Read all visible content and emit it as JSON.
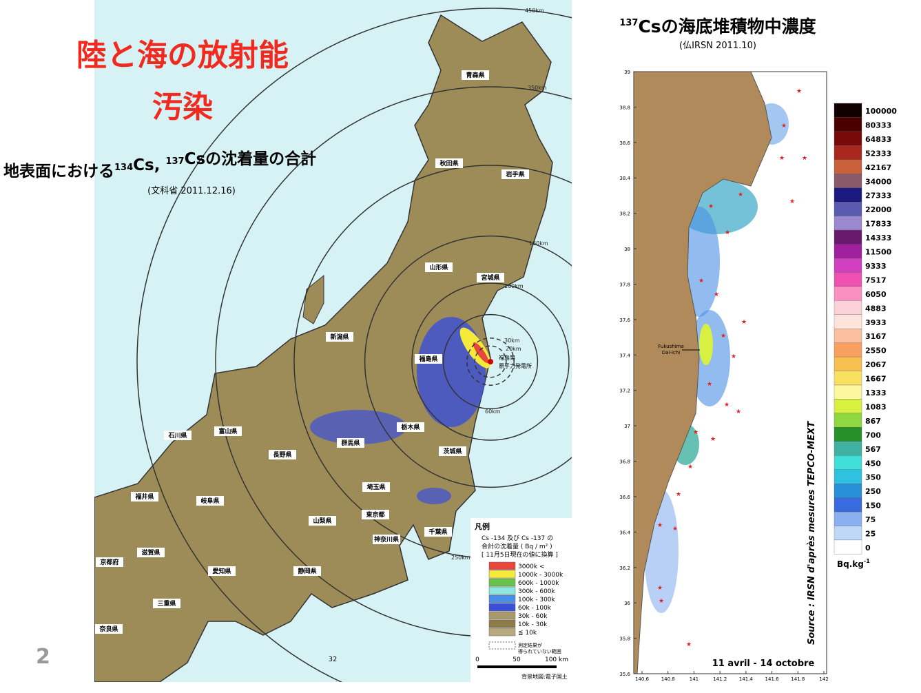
{
  "slide_number": "2",
  "left": {
    "title_lines": [
      "陸と海の放射能",
      "汚染"
    ],
    "subtitle": {
      "prefix": "地表面における",
      "iso1": "134",
      "mid": "Cs, ",
      "iso2": "137",
      "suffix": "Csの沈着量の合計"
    },
    "source": "(文科省 2011.12.16)",
    "distance_labels": [
      "450km",
      "350km",
      "250km",
      "160km",
      "100km",
      "60km",
      "30km",
      "20km"
    ],
    "plant_label": [
      "福島第",
      "原子力発電所"
    ],
    "prefectures": [
      "青森県",
      "秋田県",
      "岩手県",
      "山形県",
      "宮城県",
      "新潟県",
      "福島県",
      "石川県",
      "富山県",
      "栃木県",
      "群馬県",
      "茨城県",
      "長野県",
      "埼玉県",
      "福井県",
      "岐阜県",
      "東京都",
      "山梨県",
      "千葉県",
      "神奈川県",
      "滋賀県",
      "京都府",
      "愛知県",
      "静岡県",
      "三重県",
      "奈良県"
    ],
    "legend": {
      "title": "凡例",
      "description": [
        "Cs -134 及び Cs -137 の",
        "合計の沈着量 ( Bq / m² )",
        "[ 11月5日現在の値に換算 ]"
      ],
      "classes": [
        "3000k  <",
        "1000k - 3000k",
        "600k - 1000k",
        "300k - 600k",
        "100k - 300k",
        "60k - 100k",
        "30k - 60k",
        "10k - 30k",
        "≦ 10k"
      ],
      "class_colors": [
        "#e8473c",
        "#f5ea3a",
        "#6ac24c",
        "#8fe6e0",
        "#4a8fe6",
        "#3a4fd8",
        "#a8996a",
        "#8c7a48",
        "#b8aa80"
      ],
      "note": [
        "測定結果が",
        "得られていない範囲"
      ],
      "scale": [
        "0",
        "50",
        "100 km"
      ],
      "credit": "背景地図:電子国土"
    },
    "page_number": "32"
  },
  "right": {
    "title": {
      "iso": "137",
      "text": "Csの海底堆積物中濃度"
    },
    "source": "(仏IRSN 2011.10)",
    "lat_ticks": [
      35.6,
      35.8,
      36,
      36.2,
      36.4,
      36.6,
      36.8,
      37,
      37.2,
      37.4,
      37.6,
      37.8,
      38,
      38.2,
      38.4,
      38.6,
      38.8,
      39
    ],
    "lon_ticks": [
      140.6,
      140.8,
      141,
      141.2,
      141.4,
      141.6,
      141.8,
      142
    ],
    "site_label": [
      "Fukushima",
      "Dai-ichi"
    ],
    "vertical_source": "Source : IRSN d'après mesures TEPCO-MEXT",
    "period": "11 avril - 14 octobre",
    "legend_values": [
      100000,
      80333,
      64833,
      52333,
      42167,
      34000,
      27333,
      22000,
      17833,
      14333,
      11500,
      9333,
      7517,
      6050,
      4883,
      3933,
      3167,
      2550,
      2067,
      1667,
      1333,
      1083,
      867,
      700,
      567,
      450,
      350,
      250,
      150,
      75,
      25,
      0
    ],
    "legend_colors": [
      "#100000",
      "#4a0000",
      "#7a0a0a",
      "#a8281e",
      "#c8603a",
      "#8a5a6a",
      "#1a1a80",
      "#5a5ab0",
      "#9a88d0",
      "#6a1a6a",
      "#a020a0",
      "#d040c0",
      "#f050b0",
      "#f890c0",
      "#fcd0d8",
      "#fde4dc",
      "#fbc0a0",
      "#f8a060",
      "#f8c050",
      "#f8e060",
      "#fbf8a0",
      "#d8f040",
      "#90d840",
      "#289028",
      "#40b0a0",
      "#40e0d8",
      "#30c0e0",
      "#2890d8",
      "#3a6ae0",
      "#8ab0f0",
      "#c0d8f8",
      "#ffffff"
    ],
    "unit": {
      "base": "Bq.kg",
      "exp": "-1"
    }
  }
}
